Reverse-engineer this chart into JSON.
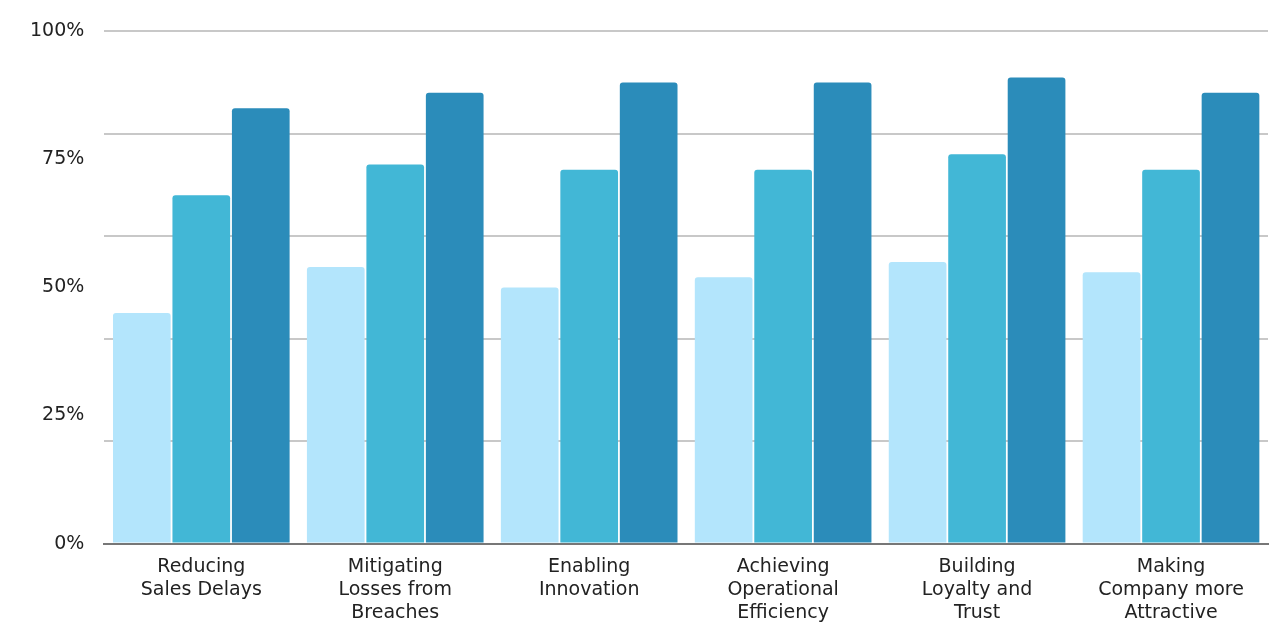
{
  "chart_data": {
    "type": "bar",
    "categories": [
      "Reducing Sales Delays",
      "Mitigating Losses from Breaches",
      "Enabling Innovation",
      "Achieving Operational Efficiency",
      "Building Loyalty and Trust",
      "Making Company more Attractive"
    ],
    "series": [
      {
        "color": "#b3e5fc",
        "values": [
          45,
          54,
          50,
          52,
          55,
          53
        ]
      },
      {
        "color": "#42b7d6",
        "values": [
          68,
          74,
          73,
          73,
          76,
          73
        ]
      },
      {
        "color": "#2b8cba",
        "values": [
          85,
          88,
          90,
          90,
          91,
          88
        ]
      }
    ],
    "ylim": [
      0,
      100
    ],
    "yticks": [
      {
        "value": 0,
        "label": "0%"
      },
      {
        "value": 20,
        "label": null
      },
      {
        "value": 25,
        "label": "25%"
      },
      {
        "value": 40,
        "label": null
      },
      {
        "value": 50,
        "label": "50%"
      },
      {
        "value": 60,
        "label": null
      },
      {
        "value": 75,
        "label": "75%"
      },
      {
        "value": 80,
        "label": null
      },
      {
        "value": 100,
        "label": "100%"
      }
    ],
    "grid": "y",
    "legend": false
  }
}
